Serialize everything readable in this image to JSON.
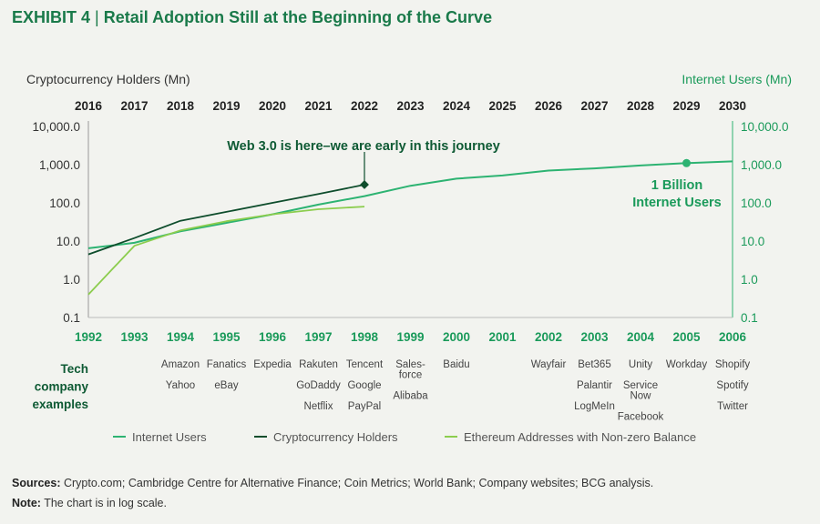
{
  "header": {
    "exhibit": "EXHIBIT 4",
    "separator": "|",
    "title": "Retail Adoption Still at the Beginning of the Curve"
  },
  "colors": {
    "internet": "#2db372",
    "crypto": "#0e4d2c",
    "ethereum": "#8ccd4e",
    "green_text": "#1a9a5a",
    "dark_green_text": "#0e5a34"
  },
  "chart_data": {
    "type": "line",
    "y_scale": "log",
    "ylim": [
      0.1,
      10000
    ],
    "left_axis_label": "Cryptocurrency Holders (Mn)",
    "right_axis_label": "Internet Users (Mn)",
    "y_ticks": [
      "10,000.0",
      "1,000.0",
      "100.0",
      "10.0",
      "1.0",
      "0.1"
    ],
    "top_x_ticks": [
      "2016",
      "2017",
      "2018",
      "2019",
      "2020",
      "2021",
      "2022",
      "2023",
      "2024",
      "2025",
      "2026",
      "2027",
      "2028",
      "2029",
      "2030"
    ],
    "bottom_x_ticks": [
      "1992",
      "1993",
      "1994",
      "1995",
      "1996",
      "1997",
      "1998",
      "1999",
      "2000",
      "2001",
      "2002",
      "2003",
      "2004",
      "2005",
      "2006"
    ],
    "series": [
      {
        "name": "Internet Users",
        "x_axis": "bottom",
        "x": [
          1992,
          1993,
          1994,
          1995,
          1996,
          1997,
          1998,
          1999,
          2000,
          2001,
          2002,
          2003,
          2004,
          2005,
          2006
        ],
        "values": [
          6.5,
          9,
          18,
          30,
          50,
          90,
          150,
          280,
          430,
          520,
          700,
          800,
          950,
          1100,
          1220
        ]
      },
      {
        "name": "Cryptocurrency Holders",
        "x_axis": "top",
        "x": [
          2016,
          2017,
          2018,
          2019,
          2020,
          2021,
          2022
        ],
        "values": [
          4.5,
          12,
          34,
          58,
          100,
          170,
          300
        ]
      },
      {
        "name": "Ethereum Addresses with Non-zero Balance",
        "x_axis": "top",
        "x": [
          2016,
          2017,
          2018,
          2019,
          2020,
          2021,
          2022
        ],
        "values": [
          0.4,
          7.5,
          19,
          33,
          50,
          68,
          80
        ]
      }
    ],
    "annotations": [
      {
        "text": "Web 3.0 is here–we are early in this journey",
        "x_axis": "top",
        "x": 2022,
        "y": 300
      },
      {
        "text_lines": [
          "1 Billion",
          "Internet Users"
        ],
        "x_axis": "bottom",
        "x": 2005,
        "y": 1100
      }
    ],
    "tech_company_label": [
      "Tech",
      "company",
      "examples"
    ],
    "tech_companies": [
      {
        "year": "1994",
        "names": [
          "Amazon",
          "Yahoo"
        ]
      },
      {
        "year": "1995",
        "names": [
          "Fanatics",
          "eBay"
        ]
      },
      {
        "year": "1996",
        "names": [
          "Expedia"
        ]
      },
      {
        "year": "1997",
        "names": [
          "Rakuten",
          "GoDaddy",
          "Netflix"
        ]
      },
      {
        "year": "1998",
        "names": [
          "Tencent",
          "Google",
          "PayPal"
        ]
      },
      {
        "year": "1999",
        "names": [
          "Sales-",
          "force",
          "Alibaba"
        ],
        "tight": [
          0,
          1
        ]
      },
      {
        "year": "2000",
        "names": [
          "Baidu"
        ]
      },
      {
        "year": "2002",
        "names": [
          "Wayfair"
        ]
      },
      {
        "year": "2003",
        "names": [
          "Bet365",
          "Palantir",
          "LogMeIn"
        ]
      },
      {
        "year": "2004",
        "names": [
          "Unity",
          "Service",
          "Now",
          "Facebook"
        ],
        "tight": [
          1,
          2
        ]
      },
      {
        "year": "2005",
        "names": [
          "Workday"
        ]
      },
      {
        "year": "2006",
        "names": [
          "Shopify",
          "Spotify",
          "Twitter"
        ]
      }
    ],
    "legend": {
      "placement": "bottom",
      "items": [
        "Internet Users",
        "Cryptocurrency Holders",
        "Ethereum Addresses with Non-zero Balance"
      ]
    }
  },
  "footer": {
    "sources_label": "Sources:",
    "sources_text": "Crypto.com; Cambridge Centre for Alternative Finance; Coin Metrics; World Bank; Company websites; BCG analysis.",
    "note_label": "Note:",
    "note_text": "The chart is in log scale."
  }
}
